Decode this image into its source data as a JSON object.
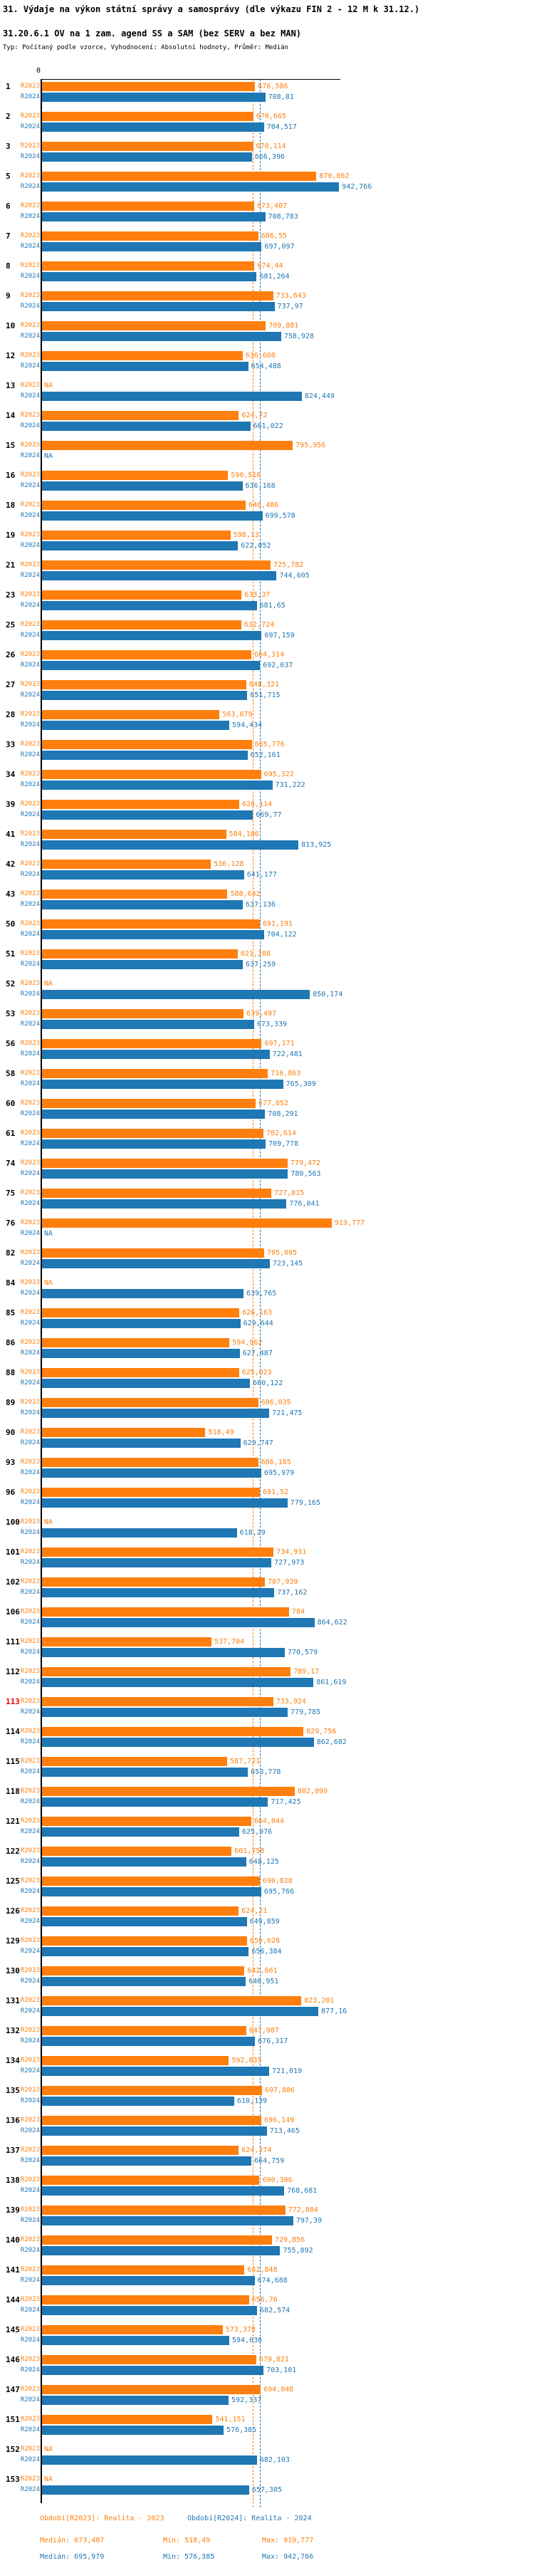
{
  "header": {
    "title": "31. Výdaje na výkon státní správy a samosprávy (dle výkazu FIN 2 - 12 M k 31.12.)",
    "subtitle": "31.20.6.1 OV na 1 zam. agend SS a SAM (bez SERV a bez MAN)",
    "meta": "Typ: Počítaný podle vzorce, Vyhodnocení: Absolutní hodnoty, Průměr: Medián"
  },
  "chart_data": {
    "type": "bar",
    "orientation": "horizontal",
    "series_labels": [
      "R2023",
      "R2024"
    ],
    "colors": {
      "r2023": "#FF7F0E",
      "r2024": "#1F77B4",
      "highlight_index": "#E60000",
      "axis": "#000000"
    },
    "axis": {
      "zero_label": "0"
    },
    "medians": {
      "r2023": "673,407",
      "r2024": "695,979"
    },
    "na_label": "NA",
    "rows": [
      {
        "id": "1",
        "r2023": "676,586",
        "r2024": "708,81"
      },
      {
        "id": "2",
        "r2023": "670,665",
        "r2024": "704,517"
      },
      {
        "id": "3",
        "r2023": "670,114",
        "r2024": "666,396"
      },
      {
        "id": "5",
        "r2023": "870,862",
        "r2024": "942,766"
      },
      {
        "id": "6",
        "r2023": "673,407",
        "r2024": "708,783"
      },
      {
        "id": "7",
        "r2023": "686,55",
        "r2024": "697,097"
      },
      {
        "id": "8",
        "r2023": "674,44",
        "r2024": "681,264"
      },
      {
        "id": "9",
        "r2023": "733,643",
        "r2024": "737,97"
      },
      {
        "id": "10",
        "r2023": "709,881",
        "r2024": "758,928"
      },
      {
        "id": "12",
        "r2023": "636,608",
        "r2024": "654,488"
      },
      {
        "id": "13",
        "r2023": "NA",
        "r2024": "824,449"
      },
      {
        "id": "14",
        "r2023": "624,72",
        "r2024": "661,022"
      },
      {
        "id": "15",
        "r2023": "795,956",
        "r2024": "NA"
      },
      {
        "id": "16",
        "r2023": "590,516",
        "r2024": "636,168"
      },
      {
        "id": "18",
        "r2023": "646,486",
        "r2024": "699,578"
      },
      {
        "id": "19",
        "r2023": "598,13",
        "r2024": "622,052"
      },
      {
        "id": "21",
        "r2023": "725,782",
        "r2024": "744,605"
      },
      {
        "id": "23",
        "r2023": "633,37",
        "r2024": "681,65"
      },
      {
        "id": "25",
        "r2023": "632,724",
        "r2024": "697,159"
      },
      {
        "id": "26",
        "r2023": "664,314",
        "r2024": "692,037"
      },
      {
        "id": "27",
        "r2023": "648,321",
        "r2024": "651,715"
      },
      {
        "id": "28",
        "r2023": "563,679",
        "r2024": "594,434"
      },
      {
        "id": "33",
        "r2023": "665,776",
        "r2024": "652,161"
      },
      {
        "id": "34",
        "r2023": "695,322",
        "r2024": "731,222"
      },
      {
        "id": "39",
        "r2023": "626,114",
        "r2024": "669,77"
      },
      {
        "id": "41",
        "r2023": "584,186",
        "r2024": "813,925"
      },
      {
        "id": "42",
        "r2023": "536,128",
        "r2024": "641,177"
      },
      {
        "id": "43",
        "r2023": "588,642",
        "r2024": "637,136"
      },
      {
        "id": "50",
        "r2023": "691,191",
        "r2024": "704,122"
      },
      {
        "id": "51",
        "r2023": "621,288",
        "r2024": "637,259"
      },
      {
        "id": "52",
        "r2023": "NA",
        "r2024": "850,174"
      },
      {
        "id": "53",
        "r2023": "639,497",
        "r2024": "673,339"
      },
      {
        "id": "56",
        "r2023": "697,171",
        "r2024": "722,481"
      },
      {
        "id": "58",
        "r2023": "716,863",
        "r2024": "765,309"
      },
      {
        "id": "60",
        "r2023": "677,852",
        "r2024": "708,291"
      },
      {
        "id": "61",
        "r2023": "702,614",
        "r2024": "709,778"
      },
      {
        "id": "74",
        "r2023": "779,472",
        "r2024": "780,563"
      },
      {
        "id": "75",
        "r2023": "727,815",
        "r2024": "776,041"
      },
      {
        "id": "76",
        "r2023": "919,777",
        "r2024": "NA"
      },
      {
        "id": "82",
        "r2023": "705,095",
        "r2024": "723,145"
      },
      {
        "id": "84",
        "r2023": "NA",
        "r2024": "639,765"
      },
      {
        "id": "85",
        "r2023": "626,163",
        "r2024": "629,644"
      },
      {
        "id": "86",
        "r2023": "594,962",
        "r2024": "627,487"
      },
      {
        "id": "88",
        "r2023": "625,023",
        "r2024": "660,122"
      },
      {
        "id": "89",
        "r2023": "686,035",
        "r2024": "721,475"
      },
      {
        "id": "90",
        "r2023": "518,49",
        "r2024": "629,747"
      },
      {
        "id": "93",
        "r2023": "686,185",
        "r2024": "695,979"
      },
      {
        "id": "96",
        "r2023": "691,52",
        "r2024": "779,165"
      },
      {
        "id": "100",
        "r2023": "NA",
        "r2024": "618,29"
      },
      {
        "id": "101",
        "r2023": "734,931",
        "r2024": "727,973"
      },
      {
        "id": "102",
        "r2023": "707,939",
        "r2024": "737,162"
      },
      {
        "id": "106",
        "r2023": "784",
        "r2024": "864,622"
      },
      {
        "id": "111",
        "r2023": "537,704",
        "r2024": "770,579"
      },
      {
        "id": "112",
        "r2023": "789,17",
        "r2024": "861,619"
      },
      {
        "id": "113",
        "r2023": "733,924",
        "r2024": "779,785",
        "highlight": true
      },
      {
        "id": "114",
        "r2023": "829,756",
        "r2024": "862,682"
      },
      {
        "id": "115",
        "r2023": "587,721",
        "r2024": "653,778"
      },
      {
        "id": "118",
        "r2023": "802,099",
        "r2024": "717,425"
      },
      {
        "id": "121",
        "r2023": "664,044",
        "r2024": "625,976"
      },
      {
        "id": "122",
        "r2023": "601,758",
        "r2024": "648,125"
      },
      {
        "id": "125",
        "r2023": "690,828",
        "r2024": "695,766"
      },
      {
        "id": "126",
        "r2023": "624,21",
        "r2024": "649,859"
      },
      {
        "id": "129",
        "r2023": "650,628",
        "r2024": "656,384"
      },
      {
        "id": "130",
        "r2023": "642,661",
        "r2024": "646,951"
      },
      {
        "id": "131",
        "r2023": "823,201",
        "r2024": "877,16"
      },
      {
        "id": "132",
        "r2023": "647,987",
        "r2024": "676,317"
      },
      {
        "id": "134",
        "r2023": "592,835",
        "r2024": "721,019"
      },
      {
        "id": "135",
        "r2023": "697,886",
        "r2024": "610,139"
      },
      {
        "id": "136",
        "r2023": "696,149",
        "r2024": "713,465"
      },
      {
        "id": "137",
        "r2023": "624,274",
        "r2024": "664,759"
      },
      {
        "id": "138",
        "r2023": "690,306",
        "r2024": "768,681"
      },
      {
        "id": "139",
        "r2023": "772,084",
        "r2024": "797,39"
      },
      {
        "id": "140",
        "r2023": "729,856",
        "r2024": "755,892"
      },
      {
        "id": "141",
        "r2023": "642,848",
        "r2024": "674,688"
      },
      {
        "id": "144",
        "r2023": "656,76",
        "r2024": "682,574"
      },
      {
        "id": "145",
        "r2023": "573,378",
        "r2024": "594,036"
      },
      {
        "id": "146",
        "r2023": "679,821",
        "r2024": "703,101"
      },
      {
        "id": "147",
        "r2023": "694,048",
        "r2024": "592,337"
      },
      {
        "id": "151",
        "r2023": "541,151",
        "r2024": "576,385"
      },
      {
        "id": "152",
        "r2023": "NA",
        "r2024": "682,103"
      },
      {
        "id": "153",
        "r2023": "NA",
        "r2024": "657,305"
      }
    ]
  },
  "footer": {
    "period_r2023": "Období[R2023]: Realita - 2023",
    "period_r2024": "Období[R2024]: Realita - 2024",
    "stats_r2023": {
      "median": "Medián: 673,407",
      "min": "Min: 518,49",
      "max": "Max: 919,777"
    },
    "stats_r2024": {
      "median": "Medián: 695,979",
      "min": "Min: 576,385",
      "max": "Max: 942,766"
    }
  }
}
